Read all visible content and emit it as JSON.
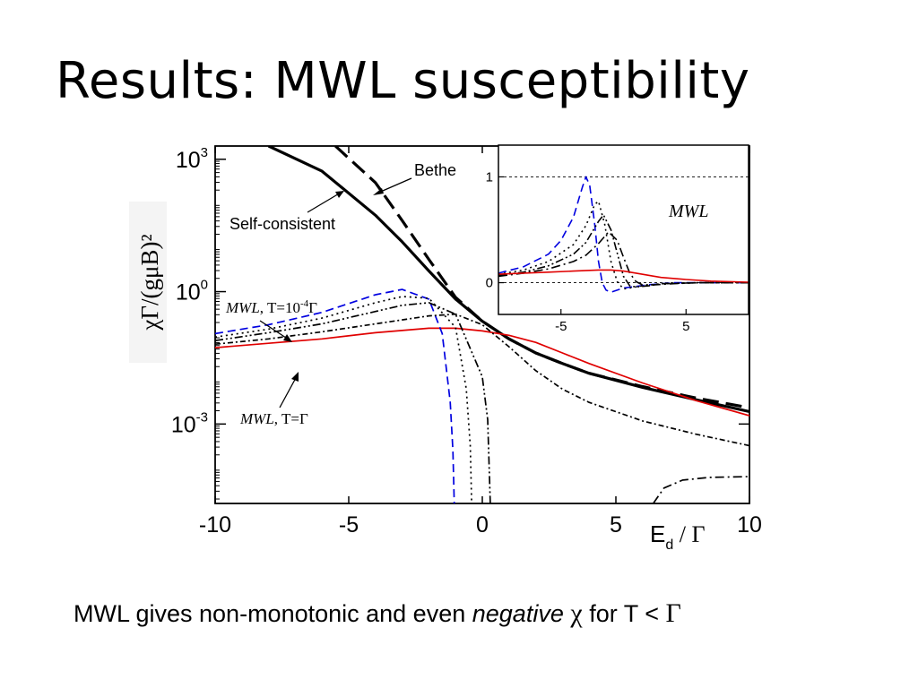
{
  "slide": {
    "title": "Results: MWL susceptibility",
    "caption_part1": "MWL gives non-monotonic and even ",
    "caption_italic": "negative",
    "caption_chi": "χ",
    "caption_part2": " for T < ",
    "caption_gamma": "Γ"
  },
  "chart_data": [
    {
      "type": "line",
      "ylabel": "χΓ/(gμB)²",
      "xlabel_main": "E",
      "xlabel_sub": "d",
      "xlabel_rest": " / Γ",
      "xlim": [
        -10,
        10
      ],
      "y_scale": "log",
      "ylim_log10": [
        -4.8,
        3.3
      ],
      "x_ticks": [
        "-10",
        "-5",
        "0",
        "5",
        "10"
      ],
      "y_ticks": [
        {
          "base": "10",
          "exp": "3"
        },
        {
          "base": "10",
          "exp": "0"
        },
        {
          "base": "10",
          "exp": "-3"
        }
      ],
      "annotations": {
        "bethe": "Bethe",
        "self_consistent": "Self-consistent",
        "mwl_low": "MWL",
        "mwl_low_rest": ", T=10",
        "mwl_low_exp": "-4",
        "mwl_low_end": "Γ",
        "mwl_high": "MWL",
        "mwl_high_rest": ", T=Γ"
      },
      "series": [
        {
          "key": "self_consistent",
          "color": "#000000",
          "style": "solid",
          "x": [
            -8,
            -6,
            -4,
            -3,
            -2,
            -1,
            0,
            1,
            2,
            3,
            4,
            6,
            8,
            10
          ],
          "y": [
            3.3,
            2.73,
            1.73,
            1.13,
            0.47,
            -0.17,
            -0.67,
            -1.07,
            -1.39,
            -1.63,
            -1.85,
            -2.17,
            -2.45,
            -2.72
          ]
        },
        {
          "key": "bethe",
          "color": "#000000",
          "style": "dashed",
          "x": [
            -5.5,
            -4,
            -3,
            -2,
            -1,
            0,
            1,
            2,
            3,
            4,
            6,
            8,
            10
          ],
          "y": [
            3.3,
            2.47,
            1.61,
            0.73,
            -0.13,
            -0.67,
            -1.07,
            -1.39,
            -1.63,
            -1.85,
            -2.15,
            -2.41,
            -2.63
          ]
        },
        {
          "key": "mwl_T_eq_gamma",
          "color": "#e00000",
          "style": "solid",
          "x": [
            -10,
            -8,
            -6,
            -4,
            -2,
            -1,
            0,
            1,
            2,
            3,
            4,
            6,
            8,
            10
          ],
          "y": [
            -1.27,
            -1.17,
            -1.07,
            -0.93,
            -0.83,
            -0.83,
            -0.89,
            -0.99,
            -1.15,
            -1.39,
            -1.63,
            -2.07,
            -2.47,
            -2.81
          ]
        },
        {
          "key": "mwl_blue_lowest_T",
          "color": "#0000e0",
          "style": "dashed",
          "x": [
            -10,
            -8,
            -6,
            -4,
            -3,
            -2,
            -1.5,
            -1.2,
            -1.1,
            -1.05
          ],
          "y": [
            -0.95,
            -0.75,
            -0.47,
            -0.07,
            0.05,
            -0.17,
            -0.95,
            -2.5,
            -3.6,
            -4.8
          ]
        },
        {
          "key": "mwl_dotted",
          "color": "#000000",
          "style": "dotted",
          "x": [
            -10,
            -8,
            -6,
            -4,
            -3,
            -2,
            -1,
            -0.6,
            -0.45,
            -0.4
          ],
          "y": [
            -1.03,
            -0.85,
            -0.6,
            -0.25,
            -0.11,
            -0.15,
            -0.81,
            -2.2,
            -3.5,
            -4.8
          ]
        },
        {
          "key": "mwl_dashdotdot",
          "color": "#000000",
          "style": "dashdotdot",
          "x": [
            -10,
            -8,
            -6,
            -4,
            -3,
            -2,
            -1,
            0,
            0.2,
            0.3
          ],
          "y": [
            -1.11,
            -0.93,
            -0.73,
            -0.45,
            -0.31,
            -0.25,
            -0.51,
            -1.93,
            -2.9,
            -4.8
          ]
        },
        {
          "key": "mwl_dashdot_dense",
          "color": "#000000",
          "style": "dashdot_dense",
          "x": [
            -10,
            -8,
            -6,
            -4,
            -2,
            -1,
            0,
            1,
            2,
            3,
            4,
            6,
            8,
            10
          ],
          "y": [
            -1.19,
            -1.07,
            -0.91,
            -0.73,
            -0.55,
            -0.51,
            -0.75,
            -1.25,
            -1.79,
            -2.21,
            -2.51,
            -2.93,
            -3.23,
            -3.49
          ]
        },
        {
          "key": "mwl_negative_branch",
          "color": "#000000",
          "style": "dashdot",
          "x": [
            6.4,
            6.8,
            7.5,
            8.5,
            10
          ],
          "y": [
            -4.8,
            -4.45,
            -4.27,
            -4.21,
            -4.19
          ]
        }
      ]
    },
    {
      "type": "line",
      "title": "MWL",
      "xlim": [
        -10,
        10
      ],
      "ylim": [
        -0.3,
        1.3
      ],
      "x_ticks": [
        "-5",
        "5"
      ],
      "y_ticks": [
        "0",
        "1"
      ],
      "series": [
        {
          "key": "inset_blue",
          "color": "#0000e0",
          "style": "dashed",
          "x": [
            -10,
            -8,
            -6,
            -5,
            -4,
            -3.3,
            -3,
            -2.7,
            -2.3,
            -2,
            -1.7,
            -1.4,
            -1,
            0,
            2,
            4,
            7,
            10
          ],
          "y": [
            0.09,
            0.15,
            0.27,
            0.4,
            0.62,
            0.9,
            1.0,
            0.92,
            0.55,
            0.2,
            0.0,
            -0.07,
            -0.09,
            -0.05,
            -0.02,
            0,
            0,
            0
          ]
        },
        {
          "key": "inset_dotted",
          "color": "#000000",
          "style": "dotted",
          "x": [
            -10,
            -8,
            -6,
            -4,
            -3,
            -2.3,
            -2,
            -1.5,
            -1,
            -0.5,
            0,
            0.5,
            1.5,
            3,
            6,
            10
          ],
          "y": [
            0.08,
            0.12,
            0.2,
            0.36,
            0.54,
            0.74,
            0.77,
            0.55,
            0.2,
            0.01,
            -0.06,
            -0.05,
            -0.03,
            -0.01,
            0,
            0
          ]
        },
        {
          "key": "inset_dashdotdot",
          "color": "#000000",
          "style": "dashdotdot",
          "x": [
            -10,
            -8,
            -6,
            -4,
            -3,
            -2,
            -1.6,
            -1,
            -0.5,
            0,
            0.5,
            1,
            2,
            3,
            6,
            10
          ],
          "y": [
            0.07,
            0.1,
            0.16,
            0.27,
            0.38,
            0.58,
            0.64,
            0.5,
            0.28,
            0.06,
            -0.03,
            -0.04,
            -0.03,
            -0.01,
            0,
            0
          ]
        },
        {
          "key": "inset_dashdot",
          "color": "#000000",
          "style": "dashdot",
          "x": [
            -10,
            -8,
            -6,
            -4,
            -3,
            -2,
            -1.2,
            -0.5,
            0,
            0.5,
            1,
            1.5,
            2.5,
            4,
            6,
            10
          ],
          "y": [
            0.06,
            0.09,
            0.13,
            0.2,
            0.26,
            0.37,
            0.48,
            0.4,
            0.24,
            0.09,
            0.01,
            -0.02,
            -0.02,
            -0.01,
            0,
            0
          ]
        },
        {
          "key": "inset_red",
          "color": "#e00000",
          "style": "solid",
          "x": [
            -10,
            -8,
            -6,
            -4,
            -2,
            -1,
            0,
            1,
            2,
            3,
            5,
            7,
            10
          ],
          "y": [
            0.08,
            0.09,
            0.1,
            0.11,
            0.12,
            0.12,
            0.11,
            0.09,
            0.07,
            0.05,
            0.03,
            0.015,
            0.005
          ]
        }
      ]
    }
  ]
}
